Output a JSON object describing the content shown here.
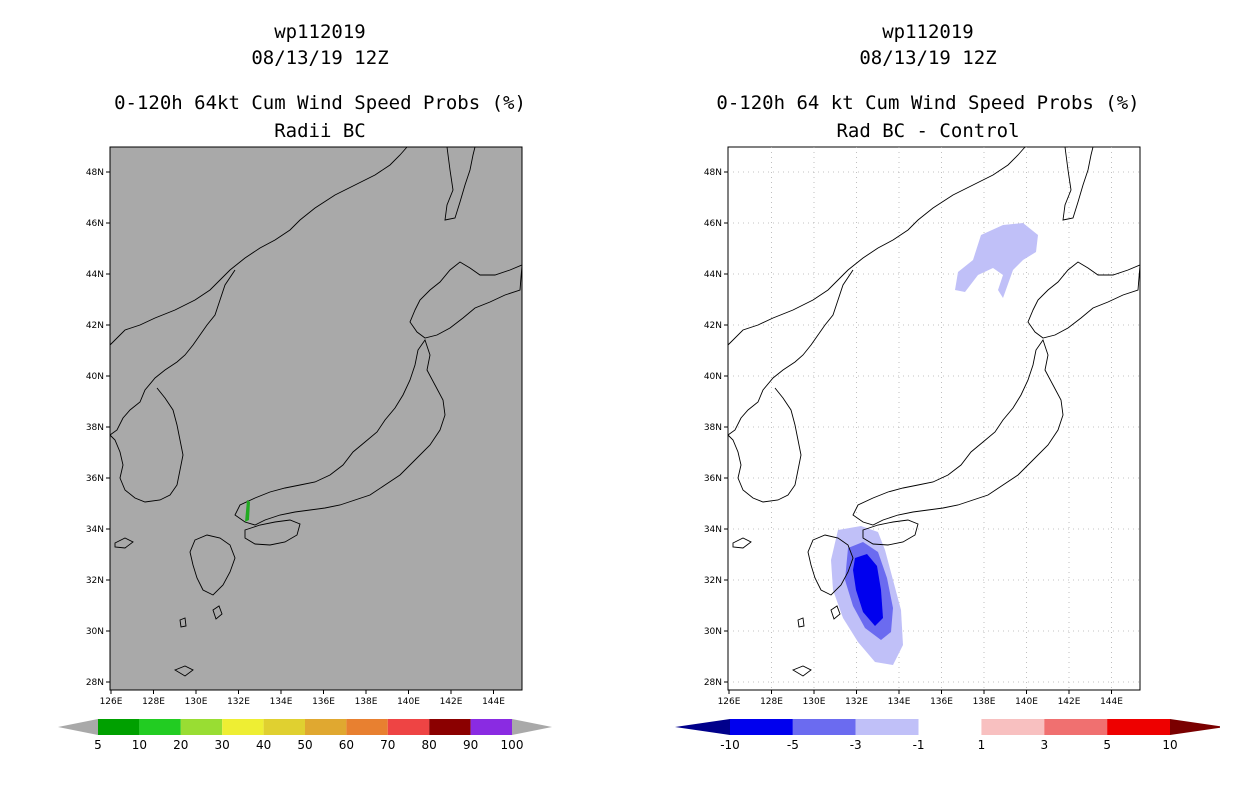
{
  "left_panel": {
    "title_line1": "wp112019",
    "title_line2": "08/13/19 12Z",
    "title_line3": "0-120h 64kt Cum Wind Speed Probs (%)",
    "title_line4": "Radii BC",
    "map_fill_color": "#a9a9a9",
    "colorbar": {
      "colors": [
        "#00a000",
        "#22cc22",
        "#99dd33",
        "#eeee33",
        "#e0d030",
        "#e0a830",
        "#e88030",
        "#ee4444",
        "#8b0000",
        "#8a2be2"
      ],
      "labels": [
        "5",
        "10",
        "20",
        "30",
        "40",
        "50",
        "60",
        "70",
        "80",
        "90",
        "100"
      ]
    }
  },
  "right_panel": {
    "title_line1": "wp112019",
    "title_line2": "08/13/19 12Z",
    "title_line3": "0-120h 64 kt Cum Wind Speed Probs (%)",
    "title_line4": "Rad BC - Control",
    "map_fill_color": "#ffffff",
    "colorbar": {
      "colors": [
        "#00008b",
        "#0000ee",
        "#6b6bf0",
        "#c0c0f8",
        "#ffffff",
        "#f8c0c0",
        "#f07070",
        "#ee0000",
        "#7a0000"
      ],
      "labels": [
        "-10",
        "-5",
        "-3",
        "-1",
        "1",
        "3",
        "5",
        "10"
      ]
    }
  },
  "axes": {
    "lon_ticks": [
      "126E",
      "128E",
      "130E",
      "132E",
      "134E",
      "136E",
      "138E",
      "140E",
      "142E",
      "144E"
    ],
    "lat_ticks": [
      "48N",
      "46N",
      "44N",
      "42N",
      "40N",
      "38N",
      "36N",
      "34N",
      "32N",
      "30N",
      "28N"
    ]
  }
}
